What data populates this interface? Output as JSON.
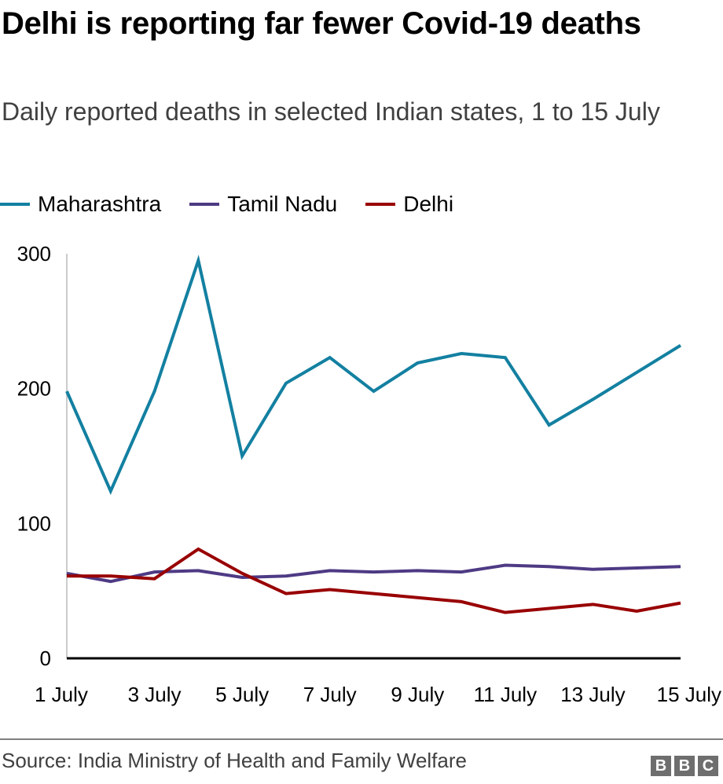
{
  "header": {
    "title": "Delhi is reporting far fewer Covid-19 deaths",
    "subtitle": "Daily reported deaths in selected Indian states, 1 to 15 July"
  },
  "footer": {
    "source": "Source: India Ministry of Health and Family Welfare",
    "logo_letters": [
      "B",
      "B",
      "C"
    ]
  },
  "chart_data": {
    "type": "line",
    "title": "Delhi is reporting far fewer Covid-19 deaths",
    "subtitle": "Daily reported deaths in selected Indian states, 1 to 15 July",
    "xlabel": "",
    "ylabel": "",
    "x": [
      1,
      2,
      3,
      4,
      5,
      6,
      7,
      8,
      9,
      10,
      11,
      12,
      13,
      14,
      15
    ],
    "x_tick_values": [
      1,
      3,
      5,
      7,
      9,
      11,
      13,
      15
    ],
    "x_tick_labels": [
      "1 July",
      "3 July",
      "5 July",
      "7 July",
      "9 July",
      "11 July",
      "13 July",
      "15 July"
    ],
    "y_ticks": [
      0,
      100,
      200,
      300
    ],
    "ylim": [
      0,
      300
    ],
    "xlim": [
      1,
      15
    ],
    "grid": false,
    "legend_position": "top-left",
    "series": [
      {
        "name": "Maharashtra",
        "color": "#1380A1",
        "values": [
          198,
          124,
          198,
          295,
          150,
          204,
          223,
          198,
          219,
          226,
          223,
          173,
          192,
          212,
          232
        ]
      },
      {
        "name": "Tamil Nadu",
        "color": "#588BD9",
        "display_color": "#4E3A84",
        "values": [
          63,
          57,
          64,
          65,
          60,
          61,
          65,
          64,
          65,
          64,
          69,
          68,
          66,
          67,
          68
        ]
      },
      {
        "name": "Delhi",
        "color": "#990000",
        "values": [
          61,
          61,
          59,
          81,
          63,
          48,
          51,
          48,
          45,
          42,
          34,
          37,
          40,
          35,
          41
        ]
      }
    ]
  }
}
